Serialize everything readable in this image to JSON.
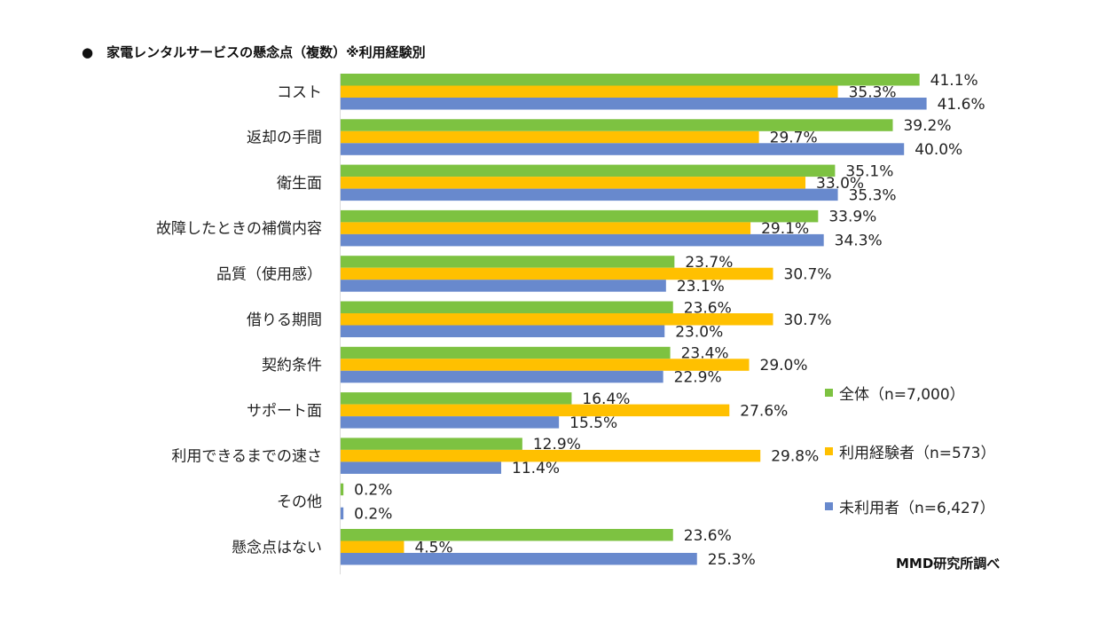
{
  "title": "●　家電レンタルサービスの懸念点（複数）※利用経験別",
  "source": "MMD研究所調べ",
  "chart_data": {
    "type": "bar",
    "orientation": "horizontal",
    "title": "家電レンタルサービスの懸念点（複数）※利用経験別",
    "value_suffix": "%",
    "xlim": [
      0,
      45
    ],
    "grid": false,
    "legend_position": "right",
    "categories": [
      "コスト",
      "返却の手間",
      "衛生面",
      "故障したときの補償内容",
      "品質（使用感）",
      "借りる期間",
      "契約条件",
      "サポート面",
      "利用できるまでの速さ",
      "その他",
      "懸念点はない"
    ],
    "series": [
      {
        "name": "全体（n=7,000）",
        "color": "#7DC241",
        "values": [
          41.1,
          39.2,
          35.1,
          33.9,
          23.7,
          23.6,
          23.4,
          16.4,
          12.9,
          0.2,
          23.6
        ]
      },
      {
        "name": "利用経験者（n=573）",
        "color": "#FFC000",
        "values": [
          35.3,
          29.7,
          33.0,
          29.1,
          30.7,
          30.7,
          29.0,
          27.6,
          29.8,
          0.0,
          4.5
        ]
      },
      {
        "name": "未利用者（n=6,427）",
        "color": "#6889CD",
        "values": [
          41.6,
          40.0,
          35.3,
          34.3,
          23.1,
          23.0,
          22.9,
          15.5,
          11.4,
          0.2,
          25.3
        ]
      }
    ],
    "data_labels": [
      [
        "41.1%",
        "39.2%",
        "35.1%",
        "33.9%",
        "23.7%",
        "23.6%",
        "23.4%",
        "16.4%",
        "12.9%",
        "0.2%",
        "23.6%"
      ],
      [
        "35.3%",
        "29.7%",
        "33.0%",
        "29.1%",
        "30.7%",
        "30.7%",
        "29.0%",
        "27.6%",
        "29.8%",
        "",
        "4.5%"
      ],
      [
        "41.6%",
        "40.0%",
        "35.3%",
        "34.3%",
        "23.1%",
        "23.0%",
        "22.9%",
        "15.5%",
        "11.4%",
        "0.2%",
        "25.3%"
      ]
    ]
  }
}
